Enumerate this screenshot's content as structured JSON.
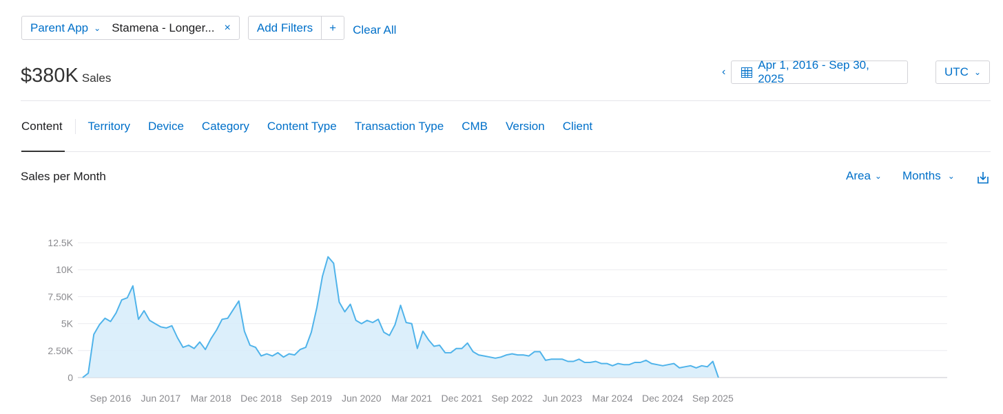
{
  "filters": {
    "parent_app_label": "Parent App",
    "parent_app_value": "Stamena - Longer...",
    "remove_symbol": "×",
    "add_filters_label": "Add Filters",
    "add_symbol": "+",
    "clear_all_label": "Clear All"
  },
  "summary": {
    "total": "$380K",
    "metric_label": "Sales"
  },
  "date_range": {
    "label": "Apr 1, 2016 - Sep 30, 2025",
    "timezone": "UTC"
  },
  "tabs": [
    {
      "label": "Content"
    },
    {
      "label": "Territory"
    },
    {
      "label": "Device"
    },
    {
      "label": "Category"
    },
    {
      "label": "Content Type"
    },
    {
      "label": "Transaction Type"
    },
    {
      "label": "CMB"
    },
    {
      "label": "Version"
    },
    {
      "label": "Client"
    }
  ],
  "chart_header": {
    "title": "Sales per Month",
    "chart_type_label": "Area",
    "period_label": "Months"
  },
  "colors": {
    "accent": "#0070c9",
    "series_line": "#4fb3ea",
    "series_fill": "#d6ecfa"
  },
  "chart_data": {
    "type": "area",
    "title": "Sales per Month",
    "xlabel": "",
    "ylabel": "",
    "x_start": "Apr 2016",
    "x_ticks": [
      "Sep 2016",
      "Jun 2017",
      "Mar 2018",
      "Dec 2018",
      "Sep 2019",
      "Jun 2020",
      "Mar 2021",
      "Dec 2021",
      "Sep 2022",
      "Jun 2023",
      "Mar 2024",
      "Dec 2024",
      "Sep 2025"
    ],
    "y_ticks": [
      0,
      2500,
      5000,
      7500,
      10000,
      12500
    ],
    "y_tick_labels": [
      "0",
      "2.50K",
      "5K",
      "7.50K",
      "10K",
      "12.5K"
    ],
    "ylim": [
      0,
      12500
    ],
    "grid": true,
    "series": [
      {
        "values": [
          0,
          400,
          4000,
          4900,
          5500,
          5200,
          6000,
          7200,
          7400,
          8500,
          5400,
          6200,
          5300,
          5000,
          4700,
          4600,
          4800,
          3700,
          2800,
          3000,
          2700,
          3300,
          2600,
          3600,
          4400,
          5400,
          5500,
          6300,
          7100,
          4300,
          3000,
          2800,
          2000,
          2200,
          2000,
          2300,
          1900,
          2200,
          2100,
          2600,
          2800,
          4200,
          6500,
          9400,
          11200,
          10600,
          7000,
          6100,
          6800,
          5300,
          5000,
          5300,
          5100,
          5400,
          4200,
          3900,
          4900,
          6700,
          5100,
          5000,
          2700,
          4300,
          3500,
          2900,
          3000,
          2300,
          2300,
          2700,
          2700,
          3200,
          2400,
          2100,
          2000,
          1900,
          1800,
          1900,
          2100,
          2200,
          2100,
          2100,
          2000,
          2400,
          2400,
          1600,
          1700,
          1700,
          1700,
          1500,
          1500,
          1700,
          1400,
          1400,
          1500,
          1300,
          1300,
          1100,
          1300,
          1200,
          1200,
          1400,
          1400,
          1600,
          1300,
          1200,
          1100,
          1200,
          1300,
          900,
          1000,
          1100,
          900,
          1100,
          1000,
          1500,
          0
        ]
      }
    ]
  }
}
